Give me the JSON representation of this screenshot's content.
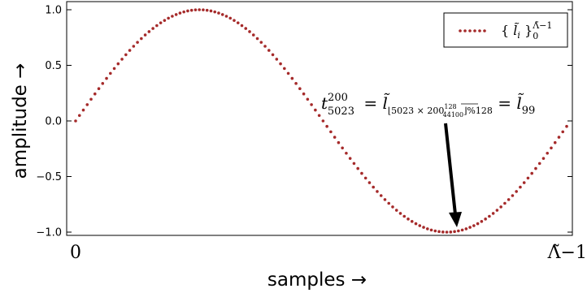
{
  "chart_data": {
    "type": "scatter",
    "xlabel": "samples →",
    "ylabel": "amplitude →",
    "ylim": [
      -1.05,
      1.05
    ],
    "yticks": [
      "−1.0",
      "−0.5",
      "0.0",
      "0.5",
      "1.0"
    ],
    "yticks_values": [
      -1.0,
      -0.5,
      0.0,
      0.5,
      1.0
    ],
    "xticks": [
      "0",
      "Λ̃−1"
    ],
    "grid": false,
    "legend_position": "top-right",
    "color": "#a52a2a",
    "series": [
      {
        "name": "{ l̃_i }_0^{Λ̃−1}",
        "sample_count": 128,
        "function": "sin(2π i / 128)"
      }
    ],
    "annotation": {
      "lhs": "t",
      "lhs_sup": "200",
      "lhs_sub": "5023",
      "rhs_sub": "⌊5023 × 200",
      "frac_num": "128",
      "frac_den": "44100",
      "rhs_tail": "⌋%128",
      "result_sub": "99",
      "target_index": 99
    }
  }
}
